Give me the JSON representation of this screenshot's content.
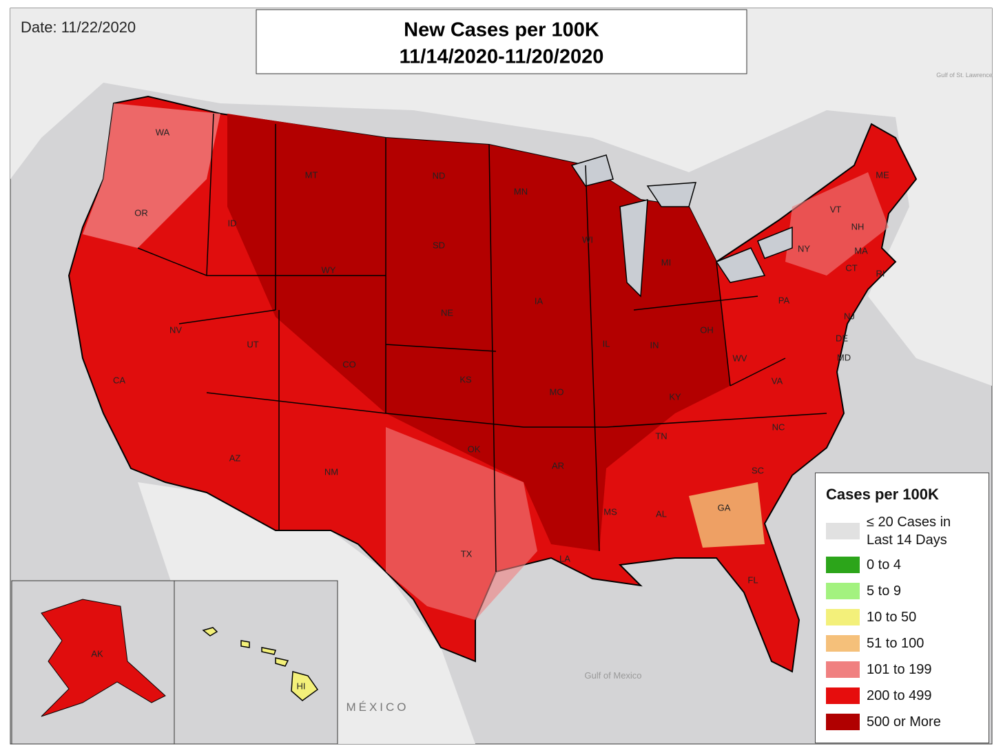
{
  "header": {
    "date": "Date: 11/22/2020",
    "title": [
      "New Cases per 100K",
      "11/14/2020-11/20/2020"
    ]
  },
  "legend": {
    "title": "Cases per 100K",
    "items": [
      {
        "label": "≤ 20 Cases in Last 14 Days",
        "color": "#e1e1e1"
      },
      {
        "label": "0 to 4",
        "color": "#2ca51a"
      },
      {
        "label": "5 to 9",
        "color": "#a3f27f"
      },
      {
        "label": "10 to 50",
        "color": "#f3f07a"
      },
      {
        "label": "51 to 100",
        "color": "#f5c07a"
      },
      {
        "label": "101 to 199",
        "color": "#f08080"
      },
      {
        "label": "200 to 499",
        "color": "#e60d0d"
      },
      {
        "label": "500 or More",
        "color": "#b00000"
      }
    ]
  },
  "state_labels": [
    "WA",
    "OR",
    "CA",
    "NV",
    "ID",
    "MT",
    "WY",
    "UT",
    "AZ",
    "CO",
    "NM",
    "ND",
    "SD",
    "NE",
    "KS",
    "OK",
    "TX",
    "MN",
    "IA",
    "MO",
    "AR",
    "LA",
    "WI",
    "IL",
    "MI",
    "IN",
    "OH",
    "KY",
    "TN",
    "MS",
    "AL",
    "GA",
    "FL",
    "SC",
    "NC",
    "VA",
    "WV",
    "PA",
    "NY",
    "ME",
    "VT",
    "NH",
    "MA",
    "CT",
    "RI",
    "NJ",
    "DE",
    "MD",
    "AK",
    "HI"
  ],
  "map_labels": [
    "Gulf of Mexico",
    "MÉXICO",
    "Gulf of St. Lawrence"
  ]
}
